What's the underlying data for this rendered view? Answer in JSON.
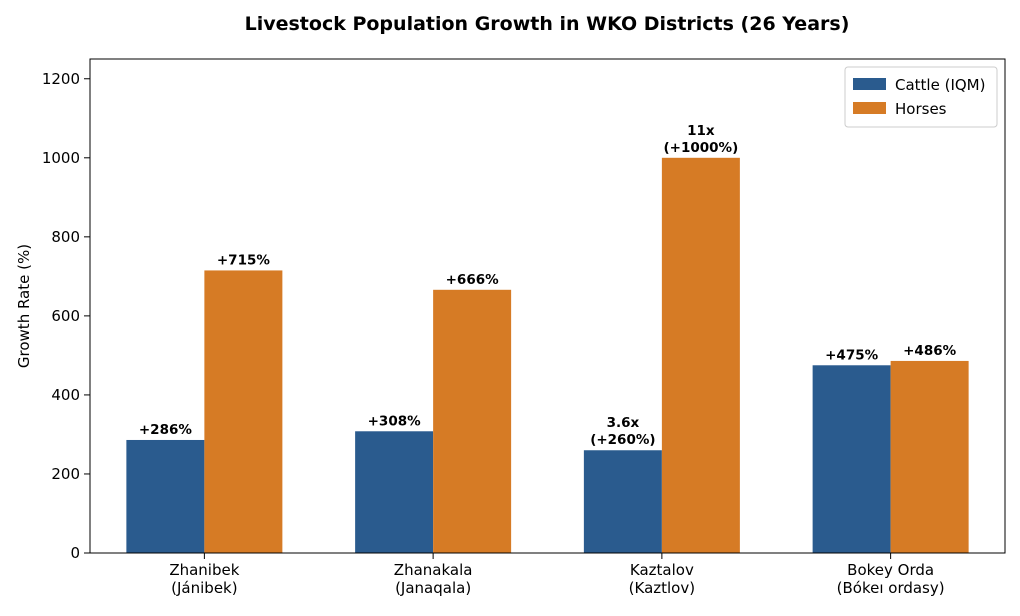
{
  "chart_data": {
    "type": "bar",
    "title": "Livestock Population Growth in WKO Districts (26 Years)",
    "xlabel": "",
    "ylabel": "Growth Rate (%)",
    "ylim": [
      0,
      1250
    ],
    "yticks": [
      0,
      200,
      400,
      600,
      800,
      1000,
      1200
    ],
    "grid": false,
    "legend_position": "top-right",
    "categories": [
      [
        "Zhanibek",
        "(Jánibek)"
      ],
      [
        "Zhanakala",
        "(Janaqala)"
      ],
      [
        "Kaztalov",
        "(Kaztlov)"
      ],
      [
        "Bokey Orda",
        "(Bókeı ordasy)"
      ]
    ],
    "series": [
      {
        "name": "Cattle (IQM)",
        "color": "#2a5b8e",
        "values": [
          286,
          308,
          260,
          475
        ],
        "labels": [
          [
            "+286%"
          ],
          [
            "+308%"
          ],
          [
            "3.6x",
            "(+260%)"
          ],
          [
            "+475%"
          ]
        ]
      },
      {
        "name": "Horses",
        "color": "#d67b25",
        "values": [
          715,
          666,
          1000,
          486
        ],
        "labels": [
          [
            "+715%"
          ],
          [
            "+666%"
          ],
          [
            "11x",
            "(+1000%)"
          ],
          [
            "+486%"
          ]
        ]
      }
    ]
  }
}
